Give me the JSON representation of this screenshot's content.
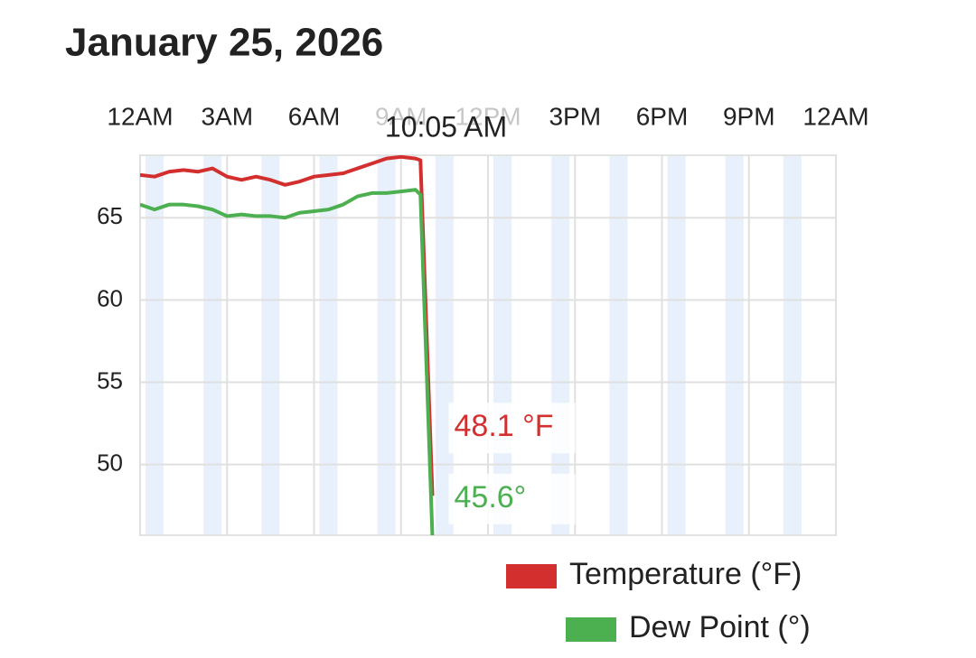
{
  "chart_data": {
    "type": "line",
    "title": "January 25, 2026",
    "xlim": [
      0,
      24
    ],
    "xticks": [
      {
        "value": 0,
        "label": "12AM"
      },
      {
        "value": 3,
        "label": "3AM"
      },
      {
        "value": 6,
        "label": "6AM"
      },
      {
        "value": 9,
        "label": "9AM"
      },
      {
        "value": 12,
        "label": "12PM"
      },
      {
        "value": 15,
        "label": "3PM"
      },
      {
        "value": 18,
        "label": "6PM"
      },
      {
        "value": 21,
        "label": "9PM"
      },
      {
        "value": 24,
        "label": "12AM"
      }
    ],
    "ylim": [
      45.7,
      68.8
    ],
    "yticks": [
      50,
      55,
      60,
      65
    ],
    "grid": true,
    "legend": "bottom-right",
    "x": [
      0,
      0.5,
      1,
      1.5,
      2,
      2.5,
      3,
      3.5,
      4,
      4.5,
      5,
      5.5,
      6,
      6.5,
      7,
      7.5,
      8,
      8.5,
      9,
      9.5,
      9.67,
      10.0833
    ],
    "series": [
      {
        "name": "Temperature (°F)",
        "color": "#d32f2f",
        "values": [
          67.6,
          67.5,
          67.8,
          67.9,
          67.8,
          68.0,
          67.5,
          67.3,
          67.5,
          67.3,
          67.0,
          67.2,
          67.5,
          67.6,
          67.7,
          68.0,
          68.3,
          68.6,
          68.7,
          68.6,
          68.5,
          48.1
        ]
      },
      {
        "name": "Dew Point (°)",
        "color": "#4caf50",
        "values": [
          65.8,
          65.5,
          65.8,
          65.8,
          65.7,
          65.5,
          65.1,
          65.2,
          65.1,
          65.1,
          65.0,
          65.3,
          65.4,
          65.5,
          65.8,
          66.3,
          66.5,
          66.5,
          66.6,
          66.7,
          66.4,
          45.6
        ]
      }
    ],
    "tooltip": {
      "x_label": "10:05 AM",
      "value_labels": [
        "48.1 °F",
        "45.6°"
      ]
    }
  }
}
